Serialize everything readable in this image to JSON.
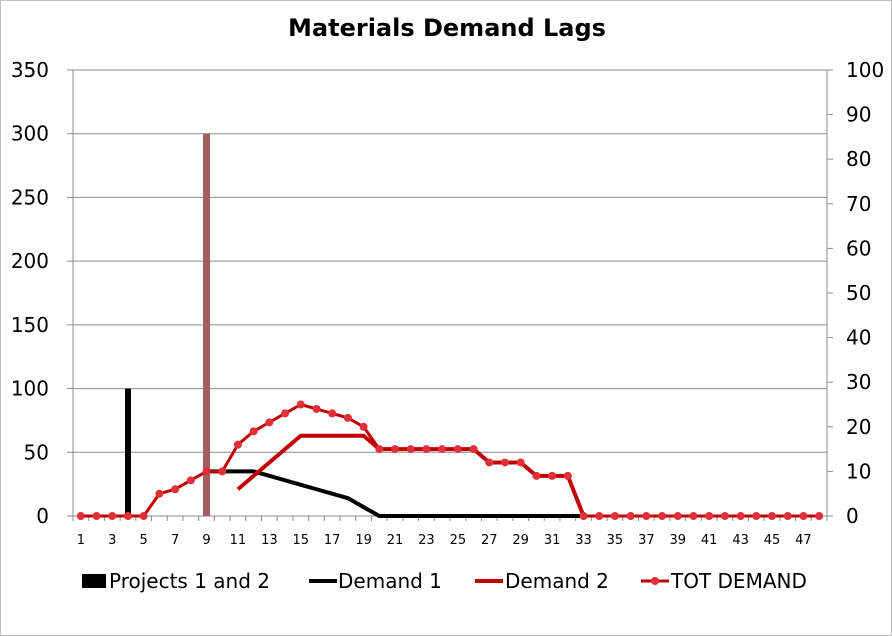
{
  "chart_data": {
    "type": "line",
    "title": "Materials Demand Lags",
    "xlabel": "",
    "ylabel": "",
    "x": [
      1,
      2,
      3,
      4,
      5,
      6,
      7,
      8,
      9,
      10,
      11,
      12,
      13,
      14,
      15,
      16,
      17,
      18,
      19,
      20,
      21,
      22,
      23,
      24,
      25,
      26,
      27,
      28,
      29,
      30,
      31,
      32,
      33,
      34,
      35,
      36,
      37,
      38,
      39,
      40,
      41,
      42,
      43,
      44,
      45,
      46,
      47,
      48
    ],
    "x_tick_labels": [
      "1",
      "3",
      "5",
      "7",
      "9",
      "11",
      "13",
      "15",
      "17",
      "19",
      "21",
      "23",
      "25",
      "27",
      "29",
      "31",
      "33",
      "35",
      "37",
      "39",
      "41",
      "43",
      "45",
      "47"
    ],
    "y_left": {
      "range": [
        0,
        350
      ],
      "ticks": [
        "0",
        "50",
        "100",
        "150",
        "200",
        "250",
        "300",
        "350"
      ]
    },
    "y_right": {
      "range": [
        0,
        100
      ],
      "ticks": [
        "0",
        "10",
        "20",
        "30",
        "40",
        "50",
        "60",
        "70",
        "80",
        "90",
        "100"
      ]
    },
    "grid": "horizontal",
    "legend_position": "bottom",
    "series": [
      {
        "name": "Projects 1 and 2",
        "kind": "bar",
        "axis": "left",
        "points": [
          {
            "x": 4,
            "y": 100,
            "color": "#000000"
          },
          {
            "x": 9,
            "y": 300,
            "color": "#a45d5d"
          }
        ]
      },
      {
        "name": "Demand 1",
        "kind": "line",
        "axis": "right",
        "color": "#000000",
        "x": [
          9,
          10,
          11,
          12,
          13,
          14,
          15,
          16,
          17,
          18,
          19,
          20,
          21,
          22,
          23,
          24,
          25,
          26,
          27,
          28,
          29,
          30,
          31,
          32,
          33
        ],
        "values": [
          10,
          10,
          10,
          10,
          9,
          8,
          7,
          6,
          5,
          4,
          2,
          0,
          0,
          0,
          0,
          0,
          0,
          0,
          0,
          0,
          0,
          0,
          0,
          0,
          0
        ]
      },
      {
        "name": "Demand 2",
        "kind": "line",
        "axis": "right",
        "color": "#c00000",
        "x": [
          11,
          12,
          13,
          14,
          15,
          16,
          17,
          18,
          19,
          20,
          21,
          22,
          23,
          24,
          25,
          26,
          27,
          28,
          29,
          30,
          31,
          32,
          33
        ],
        "values": [
          6,
          9,
          12,
          15,
          18,
          18,
          18,
          18,
          18,
          15,
          15,
          15,
          15,
          15,
          15,
          15,
          12,
          12,
          12,
          9,
          9,
          9,
          0
        ]
      },
      {
        "name": "TOT DEMAND",
        "kind": "line-markers",
        "axis": "right",
        "color": "#c00000",
        "marker_color": "#e0303a",
        "x": [
          1,
          2,
          3,
          4,
          5,
          6,
          7,
          8,
          9,
          10,
          11,
          12,
          13,
          14,
          15,
          16,
          17,
          18,
          19,
          20,
          21,
          22,
          23,
          24,
          25,
          26,
          27,
          28,
          29,
          30,
          31,
          32,
          33,
          34,
          35,
          36,
          37,
          38,
          39,
          40,
          41,
          42,
          43,
          44,
          45,
          46,
          47,
          48
        ],
        "values": [
          0,
          0,
          0,
          0,
          0,
          5,
          6,
          8,
          10,
          10,
          16,
          19,
          21,
          23,
          25,
          24,
          23,
          22,
          20,
          15,
          15,
          15,
          15,
          15,
          15,
          15,
          12,
          12,
          12,
          9,
          9,
          9,
          0,
          0,
          0,
          0,
          0,
          0,
          0,
          0,
          0,
          0,
          0,
          0,
          0,
          0,
          0,
          0
        ]
      }
    ]
  }
}
